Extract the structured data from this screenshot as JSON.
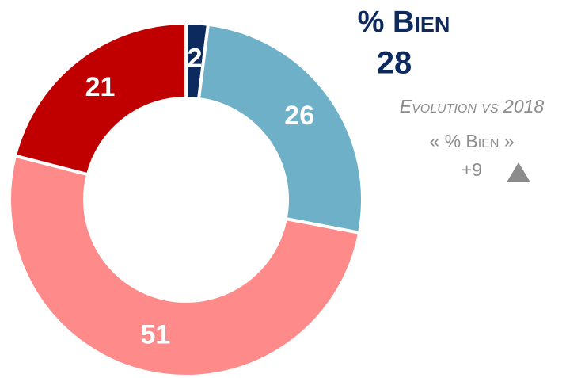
{
  "chart_data": {
    "type": "donut",
    "categories": [
      null,
      null,
      null,
      null
    ],
    "values": [
      2,
      26,
      51,
      21
    ],
    "colors": [
      "#0d2a5e",
      "#6fb0c9",
      "#ff8a8a",
      "#c00000"
    ]
  },
  "kpi": {
    "label": "% Bien",
    "value": 28,
    "evolution_label": "Evolution vs 2018",
    "evolution_metric": "« % Bien »",
    "evolution": "+9"
  }
}
